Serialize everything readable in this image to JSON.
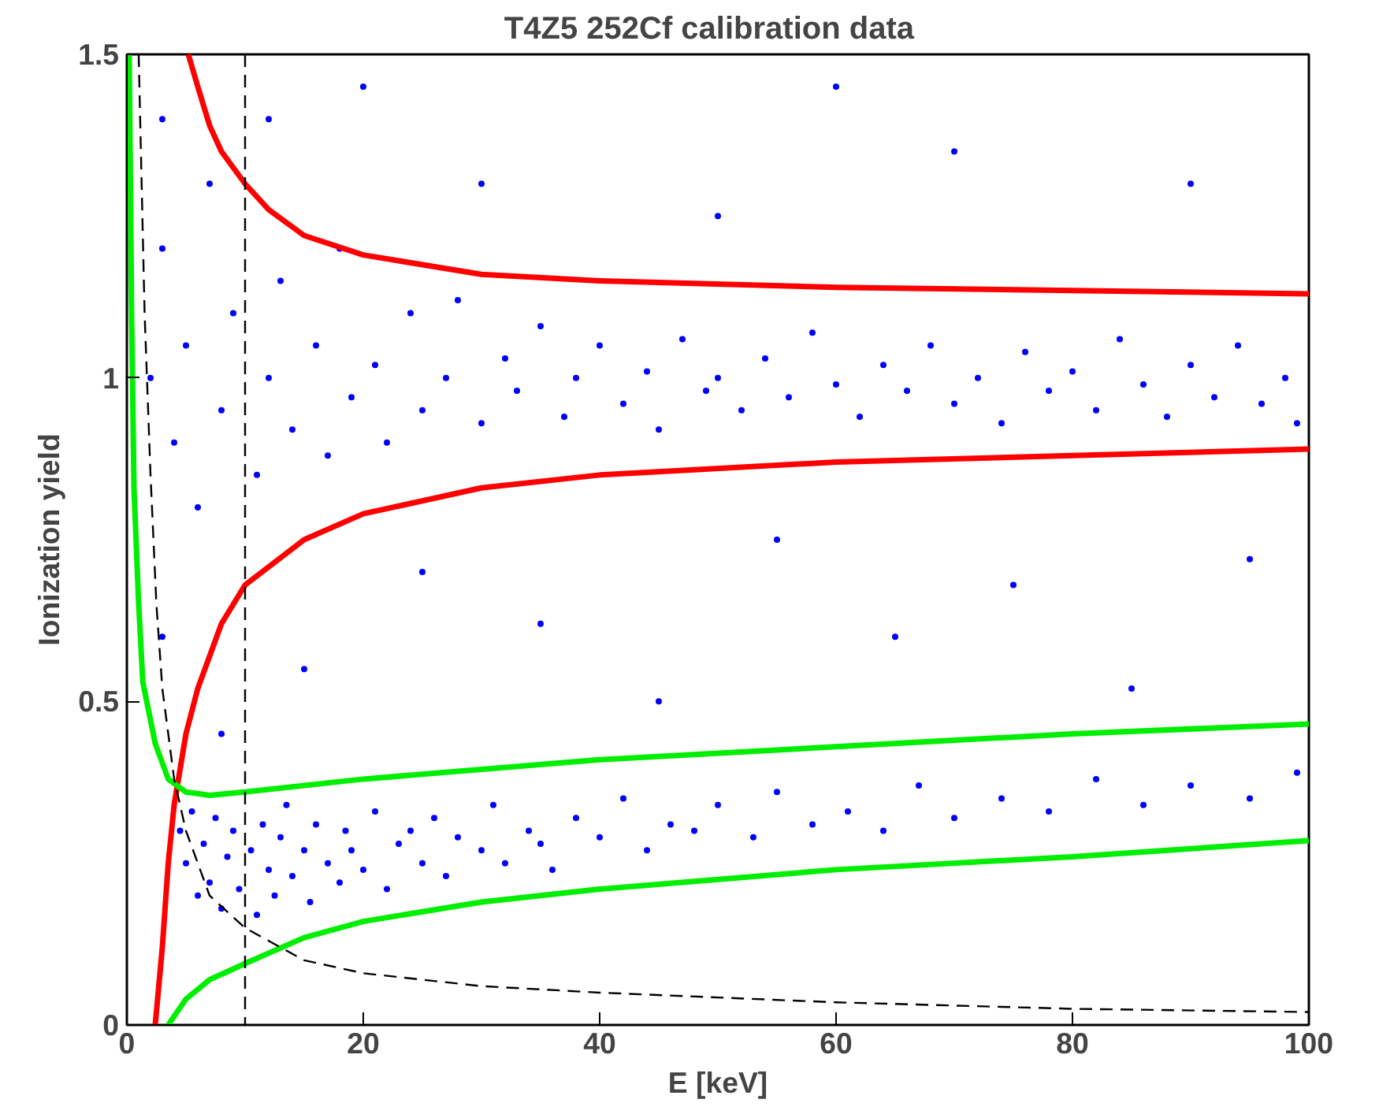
{
  "chart_data": {
    "type": "line",
    "title": "T4Z5   252Cf calibration data",
    "xlabel": "E [keV]",
    "ylabel": "Ionization yield",
    "xlim": [
      0,
      100
    ],
    "ylim": [
      0,
      1.5
    ],
    "xticks": [
      0,
      20,
      40,
      60,
      80,
      100
    ],
    "yticks": [
      0,
      0.5,
      1,
      1.5
    ],
    "grid": false,
    "series": [
      {
        "type": "scatter",
        "marker": "circle",
        "color": "#0000ff",
        "x": [
          3,
          4,
          5,
          6,
          7,
          8,
          9,
          11,
          12,
          13,
          14,
          16,
          17,
          18,
          19,
          21,
          22,
          24,
          25,
          27,
          28,
          30,
          32,
          33,
          35,
          37,
          38,
          40,
          42,
          44,
          45,
          47,
          49,
          50,
          52,
          54,
          56,
          58,
          60,
          62,
          64,
          66,
          68,
          70,
          72,
          74,
          76,
          78,
          80,
          82,
          84,
          86,
          88,
          90,
          92,
          94,
          96,
          98,
          99,
          4.5,
          5,
          5.5,
          6,
          6.5,
          7,
          7.5,
          8,
          8.5,
          9,
          9.5,
          10.5,
          11,
          11.5,
          12,
          12.5,
          13,
          13.5,
          14,
          15,
          15.5,
          16,
          17,
          18,
          18.5,
          19,
          20,
          21,
          22,
          23,
          24,
          25,
          26,
          27,
          28,
          30,
          31,
          32,
          34,
          35,
          36,
          38,
          40,
          42,
          44,
          46,
          48,
          50,
          53,
          55,
          58,
          61,
          64,
          67,
          70,
          74,
          78,
          82,
          86,
          90,
          95,
          99,
          3,
          8,
          15,
          25,
          35,
          45,
          55,
          65,
          75,
          85,
          95,
          12,
          30,
          50,
          70,
          90,
          60,
          20,
          2,
          3
        ],
        "values": [
          1.2,
          0.9,
          1.05,
          0.8,
          1.3,
          0.95,
          1.1,
          0.85,
          1.0,
          1.15,
          0.92,
          1.05,
          0.88,
          1.2,
          0.97,
          1.02,
          0.9,
          1.1,
          0.95,
          1.0,
          1.12,
          0.93,
          1.03,
          0.98,
          1.08,
          0.94,
          1.0,
          1.05,
          0.96,
          1.01,
          0.92,
          1.06,
          0.98,
          1.0,
          0.95,
          1.03,
          0.97,
          1.07,
          0.99,
          0.94,
          1.02,
          0.98,
          1.05,
          0.96,
          1.0,
          0.93,
          1.04,
          0.98,
          1.01,
          0.95,
          1.06,
          0.99,
          0.94,
          1.02,
          0.97,
          1.05,
          0.96,
          1.0,
          0.93,
          0.3,
          0.25,
          0.33,
          0.2,
          0.28,
          0.22,
          0.32,
          0.18,
          0.26,
          0.3,
          0.21,
          0.27,
          0.17,
          0.31,
          0.24,
          0.2,
          0.29,
          0.34,
          0.23,
          0.27,
          0.19,
          0.31,
          0.25,
          0.22,
          0.3,
          0.27,
          0.24,
          0.33,
          0.21,
          0.28,
          0.3,
          0.25,
          0.32,
          0.23,
          0.29,
          0.27,
          0.34,
          0.25,
          0.3,
          0.28,
          0.24,
          0.32,
          0.29,
          0.35,
          0.27,
          0.31,
          0.3,
          0.34,
          0.29,
          0.36,
          0.31,
          0.33,
          0.3,
          0.37,
          0.32,
          0.35,
          0.33,
          0.38,
          0.34,
          0.37,
          0.35,
          0.39,
          0.6,
          0.45,
          0.55,
          0.7,
          0.62,
          0.5,
          0.75,
          0.6,
          0.68,
          0.52,
          0.72,
          1.4,
          1.3,
          1.25,
          1.35,
          1.3,
          1.45,
          1.45,
          1.0,
          1.4
        ]
      },
      {
        "line_style": "solid",
        "color": "#ff0000",
        "x": [
          5.2,
          6,
          7,
          8,
          10,
          12,
          15,
          20,
          30,
          40,
          60,
          80,
          100
        ],
        "values": [
          1.5,
          1.45,
          1.39,
          1.35,
          1.3,
          1.26,
          1.22,
          1.19,
          1.16,
          1.15,
          1.14,
          1.135,
          1.13
        ]
      },
      {
        "line_style": "solid",
        "color": "#ff0000",
        "x": [
          2.4,
          3,
          3.5,
          4,
          5,
          6,
          8,
          10,
          15,
          20,
          30,
          40,
          60,
          80,
          100
        ],
        "values": [
          0,
          0.12,
          0.25,
          0.34,
          0.45,
          0.52,
          0.62,
          0.68,
          0.75,
          0.79,
          0.83,
          0.85,
          0.87,
          0.88,
          0.89
        ]
      },
      {
        "line_style": "solid",
        "color": "#00ee00",
        "x": [
          0.2,
          0.4,
          0.6,
          1,
          1.35,
          2.4,
          3.5,
          5,
          7,
          10,
          20,
          40,
          60,
          80,
          100
        ],
        "values": [
          1.5,
          1.1,
          0.83,
          0.65,
          0.53,
          0.435,
          0.38,
          0.36,
          0.355,
          0.36,
          0.38,
          0.41,
          0.43,
          0.45,
          0.465
        ]
      },
      {
        "line_style": "solid",
        "color": "#00ee00",
        "x": [
          3.5,
          5,
          7,
          10,
          15,
          20,
          30,
          40,
          60,
          80,
          100
        ],
        "values": [
          0,
          0.04,
          0.07,
          0.095,
          0.135,
          0.16,
          0.19,
          0.21,
          0.24,
          0.26,
          0.285
        ]
      },
      {
        "line_style": "dashed",
        "color": "#000000",
        "x": [
          1,
          1.5,
          2,
          2.5,
          3,
          4,
          5,
          7,
          10,
          15,
          20,
          30,
          40,
          60,
          80,
          100
        ],
        "values": [
          1.5,
          1.1,
          0.85,
          0.65,
          0.52,
          0.38,
          0.3,
          0.2,
          0.15,
          0.1,
          0.08,
          0.06,
          0.05,
          0.035,
          0.025,
          0.02
        ]
      }
    ],
    "ref_lines": [
      {
        "axis": "x",
        "value": 10,
        "color": "#000000",
        "line_style": "dashed"
      }
    ]
  }
}
